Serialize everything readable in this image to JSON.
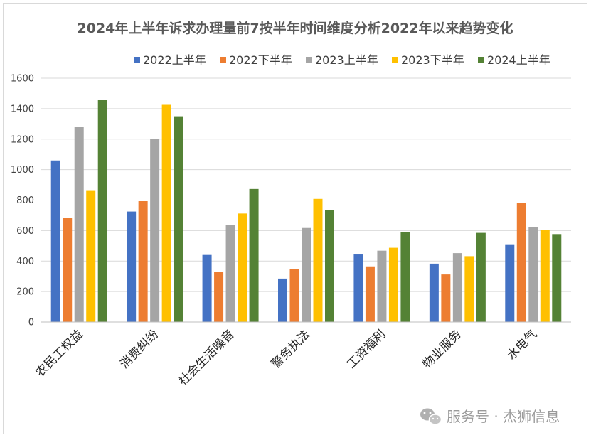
{
  "chart_data": {
    "type": "bar",
    "title": "2024年上半年诉求办理量前7按半年时间维度分析2022年以来趋势变化",
    "categories": [
      "农民工权益",
      "消费纠纷",
      "社会生活噪音",
      "警务执法",
      "工资福利",
      "物业服务",
      "水电气"
    ],
    "series": [
      {
        "name": "2022上半年",
        "color": "#4472C4",
        "values": [
          1060,
          725,
          440,
          285,
          443,
          383,
          510
        ]
      },
      {
        "name": "2022下半年",
        "color": "#ED7D31",
        "values": [
          682,
          793,
          328,
          348,
          365,
          312,
          782
        ]
      },
      {
        "name": "2023上半年",
        "color": "#A5A5A5",
        "values": [
          1282,
          1200,
          637,
          617,
          468,
          452,
          622
        ]
      },
      {
        "name": "2023下半年",
        "color": "#FFC000",
        "values": [
          865,
          1425,
          712,
          808,
          487,
          432,
          605
        ]
      },
      {
        "name": "2024上半年",
        "color": "#548235",
        "values": [
          1458,
          1350,
          873,
          733,
          592,
          585,
          577
        ]
      }
    ],
    "yticks": [
      "0",
      "200",
      "400",
      "600",
      "800",
      "1000",
      "1200",
      "1400",
      "1600"
    ],
    "ylim": [
      0,
      1600
    ],
    "grid": true,
    "legend_position": "top"
  },
  "watermark": {
    "text": "服务号 · 杰狮信息",
    "icon": "wechat-icon"
  }
}
